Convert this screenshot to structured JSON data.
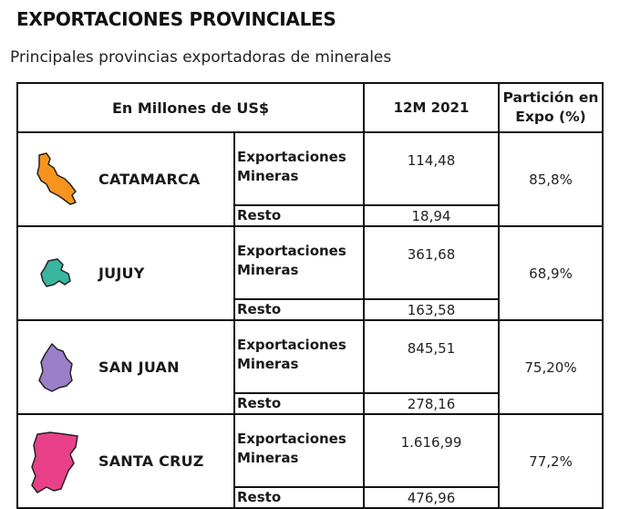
{
  "title": "EXPORTACIONES PROVINCIALES",
  "subtitle": "Principales provincias exportadoras de minerales",
  "table": {
    "headers": {
      "unit": "En Millones de US$",
      "period": "12M 2021",
      "share": "Partición en Expo (%)"
    },
    "rows": [
      {
        "province": "CATAMARCA",
        "map_color": "#f7941d",
        "map_icon": "catamarca-map-icon",
        "exports_label": "Exportaciones Mineras",
        "exports_value": "114,48",
        "rest_label": "Resto",
        "rest_value": "18,94",
        "share": "85,8%"
      },
      {
        "province": "JUJUY",
        "map_color": "#3ab5a0",
        "map_icon": "jujuy-map-icon",
        "exports_label": "Exportaciones Mineras",
        "exports_value": "361,68",
        "rest_label": "Resto",
        "rest_value": "163,58",
        "share": "68,9%"
      },
      {
        "province": "SAN JUAN",
        "map_color": "#9b7fc9",
        "map_icon": "san-juan-map-icon",
        "exports_label": "Exportaciones Mineras",
        "exports_value": "845,51",
        "rest_label": "Resto",
        "rest_value": "278,16",
        "share": "75,20%"
      },
      {
        "province": "SANTA CRUZ",
        "map_color": "#e8418a",
        "map_icon": "santa-cruz-map-icon",
        "exports_label": "Exportaciones Mineras",
        "exports_value": "1.616,99",
        "rest_label": "Resto",
        "rest_value": "476,96",
        "share": "77,2%"
      }
    ]
  }
}
